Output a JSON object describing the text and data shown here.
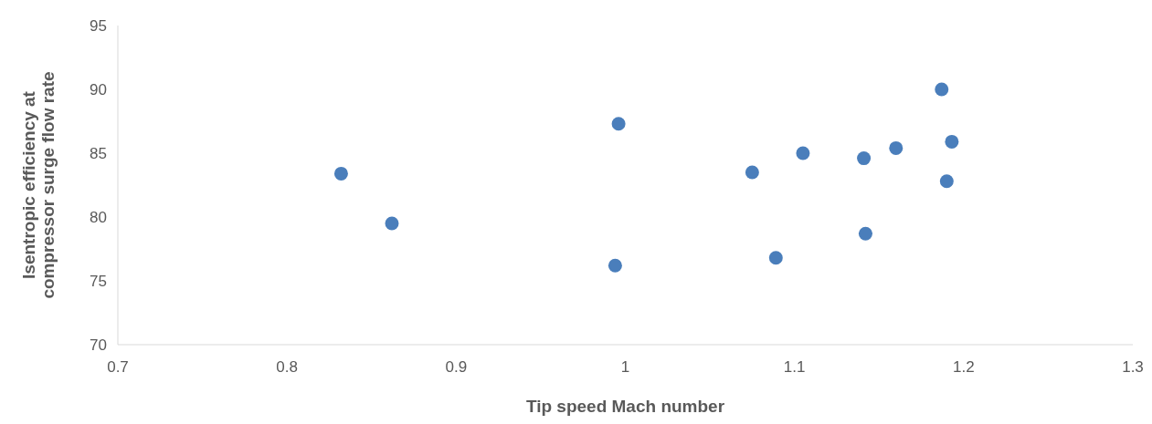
{
  "chart_data": {
    "type": "scatter",
    "xlabel": "Tip speed Mach number",
    "ylabel": "Isentropic efficiency at compressor surge flow rate",
    "x": [
      0.832,
      0.862,
      0.994,
      0.996,
      1.075,
      1.089,
      1.105,
      1.141,
      1.142,
      1.16,
      1.187,
      1.19,
      1.193
    ],
    "series": [
      {
        "color": "#4a7ebb",
        "values": [
          83.4,
          79.5,
          76.2,
          87.3,
          83.5,
          76.8,
          85.0,
          84.6,
          78.7,
          85.4,
          90.0,
          82.8,
          85.9
        ]
      }
    ],
    "xlim": [
      0.7,
      1.3
    ],
    "xticks": [
      0.7,
      0.8,
      0.9,
      1,
      1.1,
      1.2,
      1.3
    ],
    "ylim": [
      70,
      95
    ],
    "yticks": [
      70,
      75,
      80,
      85,
      90,
      95
    ],
    "grid": false,
    "marker": "circle"
  }
}
